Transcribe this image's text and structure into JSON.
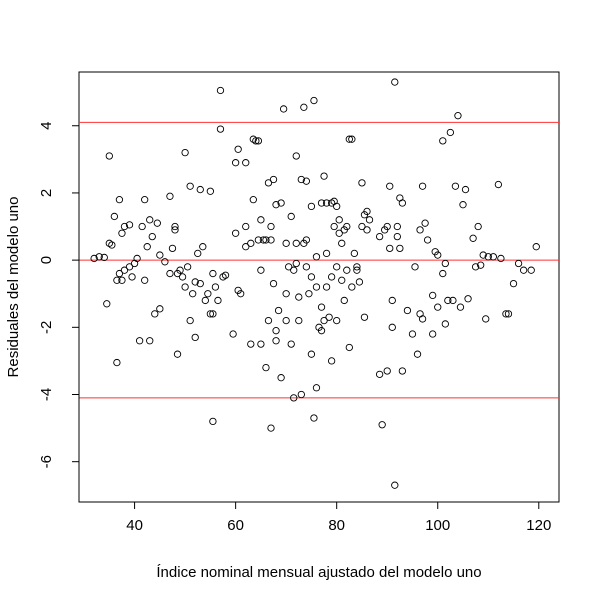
{
  "chart_data": {
    "type": "scatter",
    "title": "",
    "xlabel": "Índice nominal mensual ajustado del modelo uno",
    "ylabel": "Residuales del modelo uno",
    "xlim": [
      29,
      124
    ],
    "ylim": [
      -7.2,
      5.6
    ],
    "x_ticks": [
      40,
      60,
      80,
      100,
      120
    ],
    "y_ticks": [
      -6,
      -4,
      -2,
      0,
      2,
      4
    ],
    "grid": false,
    "marker": "open-circle",
    "reference_lines": [
      {
        "y": 4.1,
        "color": "#ff3333"
      },
      {
        "y": 0,
        "color": "#ff3333"
      },
      {
        "y": -4.1,
        "color": "#ff3333"
      }
    ],
    "points": [
      [
        32,
        0.05
      ],
      [
        33,
        0.1
      ],
      [
        34,
        0.08
      ],
      [
        34.5,
        -1.3
      ],
      [
        35,
        0.5
      ],
      [
        35,
        3.1
      ],
      [
        35.5,
        0.45
      ],
      [
        36,
        1.3
      ],
      [
        36.5,
        -0.6
      ],
      [
        36.5,
        -3.05
      ],
      [
        37,
        -0.4
      ],
      [
        37,
        1.8
      ],
      [
        37.5,
        -0.6
      ],
      [
        37.5,
        0.8
      ],
      [
        38,
        1.0
      ],
      [
        38,
        -0.3
      ],
      [
        39,
        -0.2
      ],
      [
        39,
        1.05
      ],
      [
        39.5,
        -0.5
      ],
      [
        40,
        -0.1
      ],
      [
        40.5,
        0.05
      ],
      [
        41,
        -2.4
      ],
      [
        41.5,
        1.0
      ],
      [
        42,
        1.8
      ],
      [
        42,
        -0.6
      ],
      [
        42.5,
        0.4
      ],
      [
        43,
        -2.4
      ],
      [
        43,
        1.2
      ],
      [
        43.5,
        0.7
      ],
      [
        44,
        -1.6
      ],
      [
        44.5,
        1.1
      ],
      [
        45,
        -1.45
      ],
      [
        45,
        0.15
      ],
      [
        46,
        -0.05
      ],
      [
        47,
        1.9
      ],
      [
        47,
        -0.4
      ],
      [
        47.5,
        0.35
      ],
      [
        48,
        0.9
      ],
      [
        48,
        1.0
      ],
      [
        48.5,
        -0.4
      ],
      [
        48.5,
        -2.8
      ],
      [
        49,
        -0.3
      ],
      [
        49.5,
        -0.5
      ],
      [
        50,
        -0.8
      ],
      [
        50,
        3.2
      ],
      [
        50.5,
        -0.2
      ],
      [
        51,
        2.2
      ],
      [
        51,
        -1.8
      ],
      [
        51.5,
        -1.0
      ],
      [
        52,
        -0.65
      ],
      [
        52,
        -2.3
      ],
      [
        52.5,
        0.2
      ],
      [
        53,
        -0.7
      ],
      [
        53,
        2.1
      ],
      [
        53.5,
        0.4
      ],
      [
        54,
        -1.2
      ],
      [
        54.5,
        -1.0
      ],
      [
        55,
        -1.6
      ],
      [
        55,
        2.05
      ],
      [
        55.5,
        -0.4
      ],
      [
        55.5,
        -1.6
      ],
      [
        55.5,
        -4.8
      ],
      [
        56,
        -0.8
      ],
      [
        56.5,
        -1.2
      ],
      [
        57,
        3.9
      ],
      [
        57,
        5.05
      ],
      [
        57.5,
        -0.5
      ],
      [
        58,
        -0.45
      ],
      [
        59.5,
        -2.2
      ],
      [
        60,
        2.9
      ],
      [
        60,
        0.8
      ],
      [
        60.5,
        -0.9
      ],
      [
        60.5,
        3.3
      ],
      [
        61,
        -1.0
      ],
      [
        62,
        1.0
      ],
      [
        62,
        2.9
      ],
      [
        62,
        0.4
      ],
      [
        63,
        -2.5
      ],
      [
        63,
        0.5
      ],
      [
        63.5,
        1.8
      ],
      [
        63.5,
        3.6
      ],
      [
        64,
        3.55
      ],
      [
        64.5,
        3.55
      ],
      [
        64.5,
        0.6
      ],
      [
        65,
        1.2
      ],
      [
        65,
        -0.3
      ],
      [
        65,
        -2.5
      ],
      [
        65.5,
        0.6
      ],
      [
        66,
        -3.2
      ],
      [
        66,
        0.6
      ],
      [
        66.5,
        2.3
      ],
      [
        66.5,
        -1.8
      ],
      [
        67,
        1.0
      ],
      [
        67,
        -5.0
      ],
      [
        67,
        0.6
      ],
      [
        67.5,
        2.4
      ],
      [
        67.5,
        -0.7
      ],
      [
        68,
        -2.4
      ],
      [
        68,
        -2.1
      ],
      [
        68,
        1.65
      ],
      [
        68.5,
        -1.5
      ],
      [
        69,
        -3.5
      ],
      [
        69,
        1.7
      ],
      [
        69.5,
        4.5
      ],
      [
        70,
        -1.8
      ],
      [
        70,
        0.5
      ],
      [
        70,
        -1.0
      ],
      [
        70.5,
        -0.2
      ],
      [
        71,
        -2.5
      ],
      [
        71,
        1.3
      ],
      [
        71.5,
        -0.3
      ],
      [
        71.5,
        -4.1
      ],
      [
        72,
        3.1
      ],
      [
        72,
        0.5
      ],
      [
        72,
        -0.1
      ],
      [
        72.5,
        -1.8
      ],
      [
        72.5,
        -1.1
      ],
      [
        73,
        2.4
      ],
      [
        73,
        -4.0
      ],
      [
        73.5,
        0.5
      ],
      [
        73.5,
        4.55
      ],
      [
        74,
        0.6
      ],
      [
        74,
        2.35
      ],
      [
        74,
        -0.2
      ],
      [
        74.5,
        -1.0
      ],
      [
        75,
        -0.5
      ],
      [
        75,
        1.6
      ],
      [
        75,
        -2.8
      ],
      [
        75.5,
        -4.7
      ],
      [
        75.5,
        4.75
      ],
      [
        76,
        -3.8
      ],
      [
        76,
        0.1
      ],
      [
        76,
        -0.8
      ],
      [
        76.5,
        -2.0
      ],
      [
        77,
        -2.1
      ],
      [
        77,
        1.7
      ],
      [
        77,
        -1.4
      ],
      [
        77.5,
        2.5
      ],
      [
        77.5,
        -1.8
      ],
      [
        78,
        0.2
      ],
      [
        78,
        -0.8
      ],
      [
        78,
        1.7
      ],
      [
        78.5,
        -1.7
      ],
      [
        79,
        -3.0
      ],
      [
        79,
        1.7
      ],
      [
        79,
        -0.5
      ],
      [
        79.5,
        1.0
      ],
      [
        79.5,
        1.75
      ],
      [
        80,
        -0.2
      ],
      [
        80,
        1.6
      ],
      [
        80,
        -1.8
      ],
      [
        80.5,
        0.8
      ],
      [
        80.5,
        1.2
      ],
      [
        81,
        -0.6
      ],
      [
        81,
        0.5
      ],
      [
        81.5,
        -1.2
      ],
      [
        81.5,
        0.9
      ],
      [
        82,
        1.0
      ],
      [
        82,
        -0.3
      ],
      [
        82.5,
        -2.6
      ],
      [
        82.5,
        3.6
      ],
      [
        83,
        3.6
      ],
      [
        83,
        -0.8
      ],
      [
        83.5,
        0.2
      ],
      [
        84,
        -0.3
      ],
      [
        84,
        -0.2
      ],
      [
        84.5,
        -0.65
      ],
      [
        85,
        2.3
      ],
      [
        85,
        1.0
      ],
      [
        85.5,
        -1.7
      ],
      [
        85.5,
        1.35
      ],
      [
        86,
        1.45
      ],
      [
        86,
        0.9
      ],
      [
        86.5,
        1.2
      ],
      [
        88.5,
        0.7
      ],
      [
        88.5,
        -3.4
      ],
      [
        89,
        -4.9
      ],
      [
        89.5,
        0.9
      ],
      [
        90,
        -3.3
      ],
      [
        90,
        1.0
      ],
      [
        90.5,
        2.2
      ],
      [
        90.5,
        0.35
      ],
      [
        91,
        -1.2
      ],
      [
        91,
        -2.0
      ],
      [
        91.5,
        -6.7
      ],
      [
        91.5,
        5.3
      ],
      [
        92,
        0.7
      ],
      [
        92,
        1.0
      ],
      [
        92.5,
        0.35
      ],
      [
        92.5,
        1.85
      ],
      [
        93,
        -3.3
      ],
      [
        93,
        1.7
      ],
      [
        94,
        -1.5
      ],
      [
        95,
        -2.2
      ],
      [
        95.5,
        -0.2
      ],
      [
        96,
        -2.8
      ],
      [
        96.5,
        0.9
      ],
      [
        96.5,
        -1.6
      ],
      [
        97,
        -1.75
      ],
      [
        97,
        2.2
      ],
      [
        97.5,
        1.1
      ],
      [
        98,
        0.6
      ],
      [
        99,
        -2.2
      ],
      [
        99,
        -1.05
      ],
      [
        99.5,
        0.25
      ],
      [
        100,
        0.15
      ],
      [
        100,
        -1.4
      ],
      [
        101,
        -0.4
      ],
      [
        101,
        3.55
      ],
      [
        101.5,
        -0.1
      ],
      [
        101.5,
        -1.9
      ],
      [
        102,
        -1.2
      ],
      [
        102.5,
        3.8
      ],
      [
        103,
        -1.2
      ],
      [
        103.5,
        2.2
      ],
      [
        104,
        4.3
      ],
      [
        104.5,
        -1.4
      ],
      [
        105,
        1.65
      ],
      [
        105.5,
        2.1
      ],
      [
        106,
        -1.15
      ],
      [
        107,
        0.65
      ],
      [
        107.5,
        -0.2
      ],
      [
        108,
        1.0
      ],
      [
        108.5,
        -0.15
      ],
      [
        109,
        0.15
      ],
      [
        109.5,
        -1.75
      ],
      [
        110,
        0.1
      ],
      [
        111,
        0.1
      ],
      [
        112,
        2.25
      ],
      [
        112.5,
        0.05
      ],
      [
        113.5,
        -1.6
      ],
      [
        114,
        -1.6
      ],
      [
        115,
        -0.7
      ],
      [
        116,
        -0.1
      ],
      [
        117,
        -0.3
      ],
      [
        118.5,
        -0.3
      ],
      [
        119.5,
        0.4
      ]
    ]
  }
}
